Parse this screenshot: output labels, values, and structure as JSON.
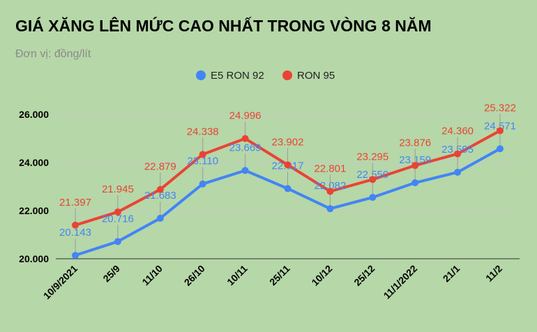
{
  "chart_data": {
    "type": "line",
    "title": "GIÁ XĂNG LÊN MỨC CAO NHẤT TRONG VÒNG 8 NĂM",
    "subtitle": "Đơn vị: đồng/lít",
    "categories": [
      "10/9/2021",
      "25/9",
      "11/10",
      "26/10",
      "10/11",
      "25/11",
      "10/12",
      "25/12",
      "11/1/2022",
      "21/1",
      "11/2"
    ],
    "ylim": [
      20000,
      26000
    ],
    "yticks": [
      {
        "value": 20000,
        "label": "20.000"
      },
      {
        "value": 22000,
        "label": "22.000"
      },
      {
        "value": 24000,
        "label": "24.000"
      },
      {
        "value": 26000,
        "label": "26.000"
      }
    ],
    "grid": true,
    "legend_position": "top",
    "series": [
      {
        "name": "E5 RON 92",
        "color": "#4285f4",
        "values": [
          20143,
          20716,
          21683,
          23110,
          23669,
          22917,
          22082,
          22550,
          23159,
          23595,
          24571
        ],
        "labels": [
          "20.143",
          "20.716",
          "21.683",
          "23.110",
          "23.669",
          "22.917",
          "22.082",
          "22.550",
          "23.159",
          "23.595",
          "24.571"
        ]
      },
      {
        "name": "RON 95",
        "color": "#ea4335",
        "values": [
          21397,
          21945,
          22879,
          24338,
          24996,
          23902,
          22801,
          23295,
          23876,
          24360,
          25322
        ],
        "labels": [
          "21.397",
          "21.945",
          "22.879",
          "24.338",
          "24.996",
          "23.902",
          "22.801",
          "23.295",
          "23.876",
          "24.360",
          "25.322"
        ]
      }
    ]
  }
}
